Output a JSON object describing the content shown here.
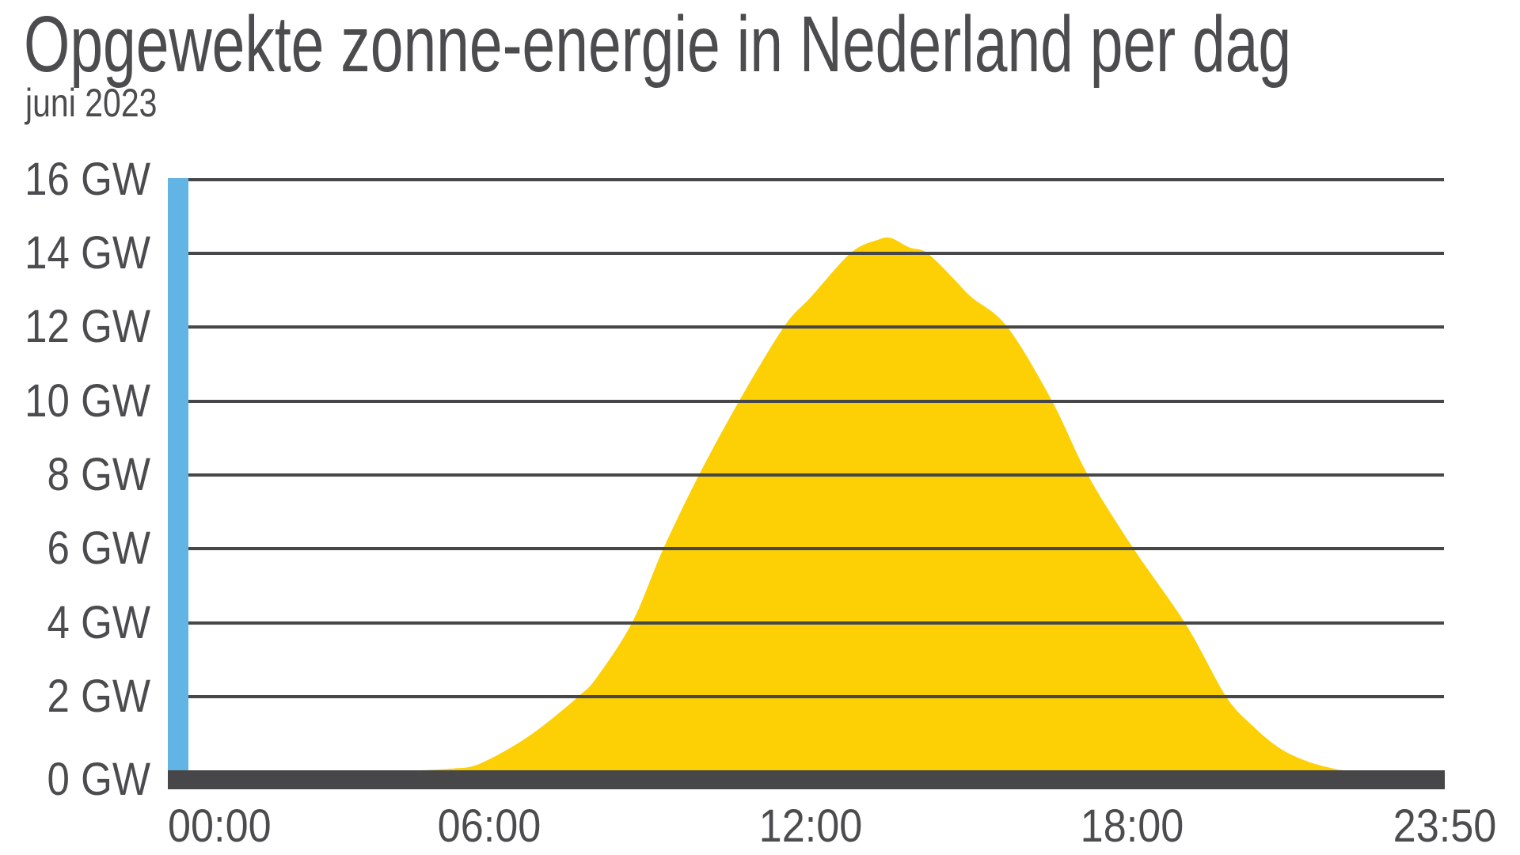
{
  "page": {
    "background": "#ffffff"
  },
  "colors": {
    "area_yellow": "#FCD005",
    "axis_blue": "#62B4E4",
    "line_dark": "#474749",
    "text_gray": "#4C4C4F",
    "background": "#FFFFFF"
  },
  "chart_data": {
    "type": "area",
    "title": "Opgewekte zonne-energie in Nederland per dag",
    "subtitle": "juni 2023",
    "xlabel": "",
    "ylabel": "GW",
    "ylim": [
      0,
      16
    ],
    "x_range": [
      "00:00",
      "23:50"
    ],
    "grid": "horizontal",
    "legend": "none",
    "y_ticks": [
      {
        "value": 16,
        "label": "16 GW"
      },
      {
        "value": 14,
        "label": "14 GW"
      },
      {
        "value": 12,
        "label": "12 GW"
      },
      {
        "value": 10,
        "label": "10 GW"
      },
      {
        "value": 8,
        "label": "8 GW"
      },
      {
        "value": 6,
        "label": "6 GW"
      },
      {
        "value": 4,
        "label": "4 GW"
      },
      {
        "value": 2,
        "label": "2 GW"
      },
      {
        "value": 0,
        "label": "0 GW"
      }
    ],
    "x_ticks": [
      {
        "time": "00:00",
        "label": "00:00"
      },
      {
        "time": "06:00",
        "label": "06:00"
      },
      {
        "time": "12:00",
        "label": "12:00"
      },
      {
        "time": "18:00",
        "label": "18:00"
      },
      {
        "time": "23:50",
        "label": "23:50"
      }
    ],
    "series": [
      {
        "name": "Opgewekte zonne-energie",
        "unit": "GW",
        "color": "#FCD005",
        "points": [
          [
            "00:00",
            0
          ],
          [
            "01:00",
            0
          ],
          [
            "02:00",
            0
          ],
          [
            "03:00",
            0
          ],
          [
            "04:00",
            0
          ],
          [
            "04:40",
            0
          ],
          [
            "05:00",
            0.02
          ],
          [
            "05:20",
            0.05
          ],
          [
            "05:40",
            0.1
          ],
          [
            "06:00",
            0.3
          ],
          [
            "06:30",
            0.7
          ],
          [
            "07:00",
            1.2
          ],
          [
            "07:40",
            2.0
          ],
          [
            "08:00",
            2.5
          ],
          [
            "08:40",
            4.0
          ],
          [
            "09:15",
            6.0
          ],
          [
            "09:55",
            8.0
          ],
          [
            "10:40",
            10.0
          ],
          [
            "11:30",
            12.0
          ],
          [
            "12:00",
            12.8
          ],
          [
            "12:45",
            14.0
          ],
          [
            "13:15",
            14.35
          ],
          [
            "13:30",
            14.4
          ],
          [
            "13:50",
            14.15
          ],
          [
            "14:10",
            14.0
          ],
          [
            "14:40",
            13.3
          ],
          [
            "15:00",
            12.8
          ],
          [
            "15:40",
            12.0
          ],
          [
            "16:30",
            10.0
          ],
          [
            "17:10",
            8.0
          ],
          [
            "18:00",
            6.05
          ],
          [
            "19:00",
            3.95
          ],
          [
            "19:45",
            2.0
          ],
          [
            "20:15",
            1.2
          ],
          [
            "20:45",
            0.6
          ],
          [
            "21:15",
            0.25
          ],
          [
            "21:45",
            0.05
          ],
          [
            "22:00",
            0
          ],
          [
            "22:30",
            0
          ],
          [
            "23:00",
            0
          ],
          [
            "23:50",
            0
          ]
        ]
      }
    ]
  }
}
